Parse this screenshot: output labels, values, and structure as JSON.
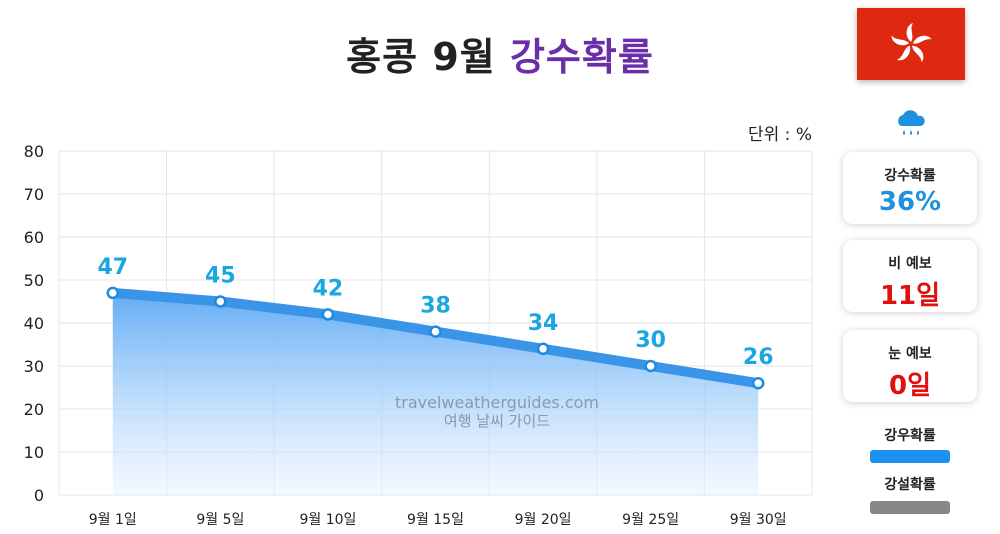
{
  "title": {
    "prefix": "홍콩 9월",
    "highlight": "강수확률"
  },
  "unit_label": "단위 : %",
  "watermark": {
    "line1": "travelweatherguides.com",
    "line2": "여행 날씨 가이드"
  },
  "cards": [
    {
      "label": "강수확률",
      "value": "36%",
      "color": "#1e90e0"
    },
    {
      "label": "비 예보",
      "value": "11일",
      "color": "#e01010"
    },
    {
      "label": "눈 예보",
      "value": "0일",
      "color": "#e01010"
    }
  ],
  "legend": [
    {
      "label": "강우확률",
      "color": "#1e90f0"
    },
    {
      "label": "강설확률",
      "color": "#888888"
    }
  ],
  "colors": {
    "line": "#3a94e8",
    "fill_top": "#5aa8f5",
    "label": "#1aa6e0",
    "flag": "#de2910"
  },
  "chart_data": {
    "type": "area",
    "categories": [
      "9월 1일",
      "9월 5일",
      "9월 10일",
      "9월 15일",
      "9월 20일",
      "9월 25일",
      "9월 30일"
    ],
    "series": [
      {
        "values": [
          47,
          45,
          42,
          38,
          34,
          30,
          26
        ]
      }
    ],
    "ylim": [
      0,
      80
    ],
    "yticks": [
      0,
      10,
      20,
      30,
      40,
      50,
      60,
      70,
      80
    ],
    "grid": true
  }
}
